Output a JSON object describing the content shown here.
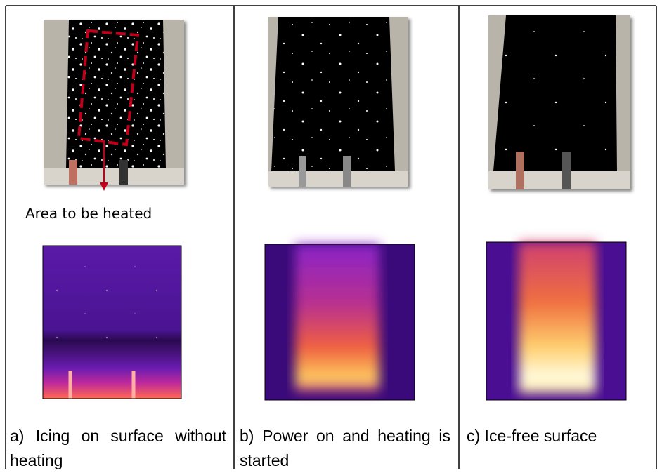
{
  "annotation": "Area to be heated",
  "panels": [
    {
      "caption": "a) Icing on surface without heating"
    },
    {
      "caption": "b) Power on and heating is started"
    },
    {
      "caption": "c) Ice-free surface"
    }
  ]
}
